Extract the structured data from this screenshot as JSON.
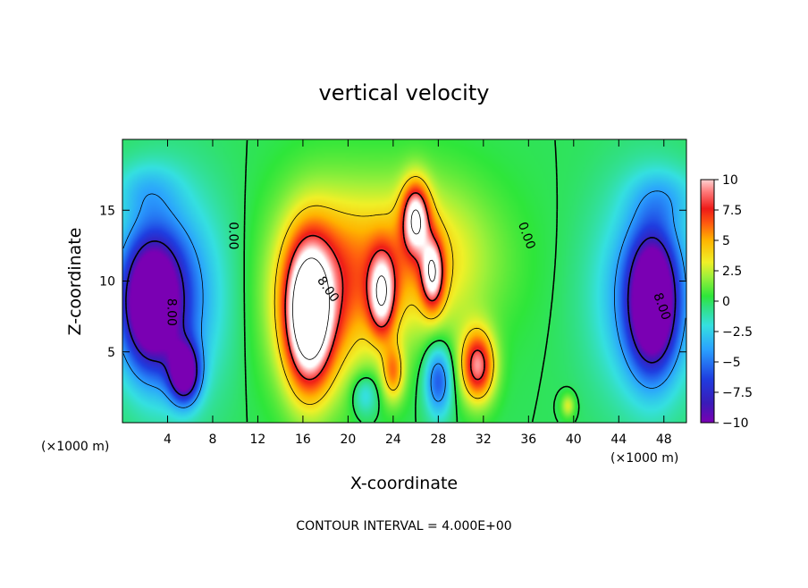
{
  "chart_data": {
    "type": "heatmap",
    "title": "vertical velocity",
    "xlabel": "X-coordinate",
    "ylabel": "Z-coordinate",
    "x_unit_left": "(×1000 m)",
    "x_unit_right": "(×1000 m)",
    "xlim": [
      0,
      50
    ],
    "ylim": [
      0,
      20
    ],
    "x_ticks": [
      4,
      8,
      12,
      16,
      20,
      24,
      28,
      32,
      36,
      40,
      44,
      48
    ],
    "y_ticks": [
      5,
      10,
      15
    ],
    "colorbar": {
      "ticks": [
        "10",
        "7.5",
        "5",
        "2.5",
        "0",
        "−2.5",
        "−5",
        "−7.5",
        "−10"
      ],
      "tick_values": [
        10,
        7.5,
        5,
        2.5,
        0,
        -2.5,
        -5,
        -7.5,
        -10
      ],
      "range": [
        -10,
        10
      ]
    },
    "contour_labels": [
      "0.00",
      "0.00",
      "8.00",
      "8.00",
      "8.00"
    ],
    "footer": "CONTOUR INTERVAL = 4.000E+00",
    "features": [
      {
        "x": 2.5,
        "z": 8.5,
        "w": -12,
        "rx": 2.6,
        "rz": 4.5
      },
      {
        "x": 5.5,
        "z": 3.5,
        "w": -11,
        "rx": 1.3,
        "rz": 2.0
      },
      {
        "x": 4.5,
        "z": 9.0,
        "w": -5,
        "rx": 4.5,
        "rz": 7.0
      },
      {
        "x": 47.0,
        "z": 8.5,
        "w": -12,
        "rx": 2.0,
        "rz": 4.5
      },
      {
        "x": 46.5,
        "z": 9.0,
        "w": -5,
        "rx": 4.5,
        "rz": 7.0
      },
      {
        "x": 16.5,
        "z": 7.5,
        "w": 12,
        "rx": 2.0,
        "rz": 5.0
      },
      {
        "x": 17.5,
        "z": 9.0,
        "w": 6,
        "rx": 4.5,
        "rz": 6.5
      },
      {
        "x": 23.0,
        "z": 9.0,
        "w": 8,
        "rx": 1.2,
        "rz": 3.0
      },
      {
        "x": 26.0,
        "z": 14.5,
        "w": 9,
        "rx": 1.2,
        "rz": 2.5
      },
      {
        "x": 27.5,
        "z": 10.5,
        "w": 8,
        "rx": 1.0,
        "rz": 2.5
      },
      {
        "x": 25.5,
        "z": 11.5,
        "w": 5,
        "rx": 7.0,
        "rz": 5.5
      },
      {
        "x": 31.5,
        "z": 4.0,
        "w": 9,
        "rx": 1.5,
        "rz": 2.5
      },
      {
        "x": 28.0,
        "z": 3.0,
        "w": -6,
        "rx": 1.2,
        "rz": 2.5
      },
      {
        "x": 24.0,
        "z": 3.5,
        "w": 5,
        "rx": 1.0,
        "rz": 2.0
      },
      {
        "x": 21.5,
        "z": 2.0,
        "w": -3,
        "rx": 1.2,
        "rz": 1.5
      },
      {
        "x": 39.5,
        "z": 1.2,
        "w": 3,
        "rx": 0.6,
        "rz": 0.8
      },
      {
        "x": 2.0,
        "z": 16.5,
        "w": -2,
        "rx": 3.0,
        "rz": 2.0
      },
      {
        "x": 48.0,
        "z": 16.0,
        "w": -2,
        "rx": 3.0,
        "rz": 2.0
      }
    ]
  }
}
